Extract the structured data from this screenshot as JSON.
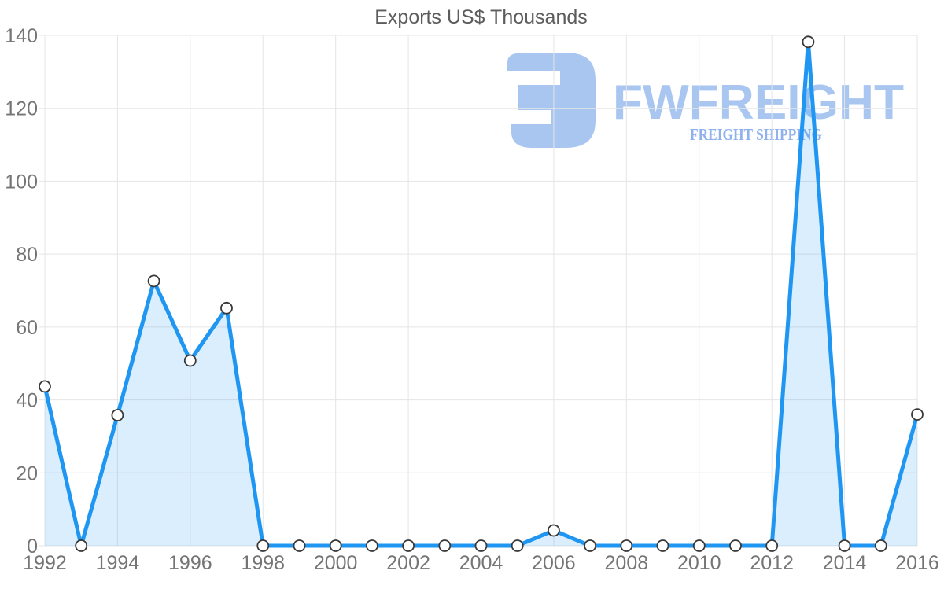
{
  "watermark": {
    "brand": "FWFREIGHT",
    "tagline": "FREIGHT SHIPPING",
    "colors": {
      "mark": "#A9C6F0",
      "brand": "#A9C6F1",
      "tagline": "#8FB2EF"
    }
  },
  "chart_data": {
    "type": "area",
    "title": "Exports US$ Thousands",
    "xlabel": "",
    "ylabel": "",
    "x": [
      1992,
      1993,
      1994,
      1995,
      1996,
      1997,
      1998,
      1999,
      2000,
      2001,
      2002,
      2003,
      2004,
      2005,
      2006,
      2007,
      2008,
      2009,
      2010,
      2011,
      2012,
      2013,
      2014,
      2015,
      2016
    ],
    "series": [
      {
        "name": "Exports US$ Thousands",
        "values": [
          43.7,
          0,
          35.8,
          72.6,
          50.8,
          65.2,
          0,
          0,
          0,
          0,
          0,
          0,
          0,
          0,
          4.2,
          0,
          0,
          0,
          0,
          0,
          0,
          138.2,
          0,
          0,
          36
        ]
      }
    ],
    "ylim": [
      0,
      140
    ],
    "yticks": [
      0,
      20,
      40,
      60,
      80,
      100,
      120,
      140
    ],
    "xticks": [
      1992,
      1994,
      1996,
      1998,
      2000,
      2002,
      2004,
      2006,
      2008,
      2010,
      2012,
      2014,
      2016
    ],
    "grid": true,
    "legend": false,
    "marker": "circle",
    "colors": {
      "line": "#1E96F2",
      "area_fill": "rgba(30,150,242,0.16)",
      "marker_fill": "#FFFFFF",
      "marker_stroke": "#383838",
      "grid": "#E5E5E5",
      "axis_text": "#757575",
      "title_text": "#5C5C5C"
    }
  }
}
